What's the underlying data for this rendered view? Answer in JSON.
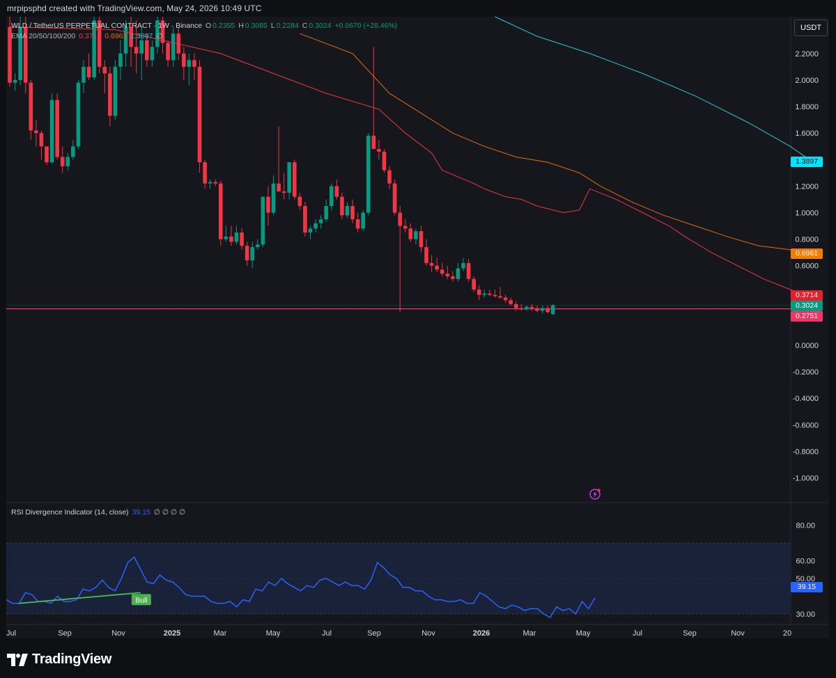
{
  "header": {
    "created_by": "mrpipsphd created with TradingView.com, May 24, 2026 10:49 UTC"
  },
  "legend": {
    "symbol": "WLD / TetherUS PERPETUAL CONTRACT · 1W · Binance",
    "o_label": "O",
    "o_value": "0.2355",
    "h_label": "H",
    "h_value": "0.3085",
    "l_label": "L",
    "l_value": "0.2284",
    "c_label": "C",
    "c_value": "0.3024",
    "change": "+0.0670 (+28.46%)",
    "ema_label": "EMA 20/50/100/200",
    "ema_values": [
      "0.3714",
      "0.6961",
      "1.3897",
      "∅"
    ],
    "rsi_label": "RSI Divergence Indicator (14, close)",
    "rsi_value": "39.15",
    "rsi_na": "∅ ∅ ∅ ∅"
  },
  "currency_button": "USDT",
  "brand": "TradingView",
  "price_tags": [
    {
      "id": "ema200",
      "text": "1.3897",
      "color": "#00e5ff",
      "text_color": "#000000"
    },
    {
      "id": "ema100",
      "text": "0.6961",
      "color": "#f57c00",
      "text_color": "#ffffff"
    },
    {
      "id": "ema50",
      "text": "0.3714",
      "color": "#e91e2c",
      "text_color": "#ffffff"
    },
    {
      "id": "close",
      "text": "0.3024",
      "color": "#089981",
      "text_color": "#ffffff"
    },
    {
      "id": "hline",
      "text": "0.2751",
      "color": "#f23663",
      "text_color": "#ffffff"
    },
    {
      "id": "rsi",
      "text": "39.15",
      "color": "#2962ff",
      "text_color": "#ffffff"
    }
  ],
  "divergence_label": "Bull",
  "colors": {
    "up": "#089981",
    "down": "#f23645",
    "ema20": "#f23645",
    "ema50": "#e96a0b",
    "ema100": "#26c6da",
    "hline": "#f23663",
    "rsi": "#2962ff",
    "bull": "#4caf50"
  },
  "chart_data": {
    "type": "candlestick",
    "title": "WLD / TetherUS PERPETUAL CONTRACT · 1W · Binance",
    "x_ticks": [
      "Jul",
      "Sep",
      "Nov",
      "2025",
      "Mar",
      "May",
      "Jul",
      "Sep",
      "Nov",
      "2026",
      "Mar",
      "May",
      "Jul",
      "Sep",
      "Nov",
      "20"
    ],
    "y_ticks": [
      "2.2000",
      "2.0000",
      "1.8000",
      "1.6000",
      "1.4000",
      "1.2000",
      "1.0000",
      "0.8000",
      "0.6000",
      "0.0000",
      "-0.2000",
      "-0.4000",
      "-0.6000",
      "-0.8000",
      "-1.0000"
    ],
    "ylim": [
      -1.1,
      2.35
    ],
    "horizontal_line": 0.2751,
    "candles": [
      [
        2.4,
        2.5,
        1.95,
        1.98
      ],
      [
        1.98,
        2.05,
        1.92,
        2.0
      ],
      [
        2.0,
        2.5,
        1.96,
        2.4
      ],
      [
        2.4,
        2.5,
        1.9,
        1.98
      ],
      [
        1.98,
        2.0,
        1.55,
        1.62
      ],
      [
        1.62,
        1.7,
        1.5,
        1.6
      ],
      [
        1.6,
        1.62,
        1.4,
        1.5
      ],
      [
        1.5,
        1.5,
        1.36,
        1.38
      ],
      [
        1.38,
        1.9,
        1.37,
        1.85
      ],
      [
        1.85,
        1.9,
        1.4,
        1.42
      ],
      [
        1.42,
        1.5,
        1.3,
        1.35
      ],
      [
        1.35,
        1.45,
        1.32,
        1.42
      ],
      [
        1.42,
        1.55,
        1.4,
        1.5
      ],
      [
        1.5,
        2.0,
        1.48,
        1.98
      ],
      [
        1.98,
        2.15,
        1.9,
        2.1
      ],
      [
        2.1,
        2.2,
        2.0,
        2.02
      ],
      [
        2.02,
        2.5,
        2.0,
        2.45
      ],
      [
        2.45,
        2.6,
        2.05,
        2.1
      ],
      [
        2.1,
        2.15,
        1.9,
        2.05
      ],
      [
        2.05,
        2.1,
        1.65,
        1.73
      ],
      [
        1.73,
        2.15,
        1.7,
        2.1
      ],
      [
        2.1,
        2.3,
        2.0,
        2.2
      ],
      [
        2.2,
        2.45,
        2.1,
        2.4
      ],
      [
        2.4,
        2.5,
        2.1,
        2.25
      ],
      [
        2.25,
        2.45,
        2.05,
        2.2
      ],
      [
        2.2,
        2.4,
        2.0,
        2.3
      ],
      [
        2.3,
        2.35,
        2.1,
        2.15
      ],
      [
        2.15,
        2.3,
        2.1,
        2.25
      ],
      [
        2.25,
        2.5,
        2.2,
        2.45
      ],
      [
        2.45,
        2.5,
        2.2,
        2.28
      ],
      [
        2.28,
        2.3,
        2.1,
        2.15
      ],
      [
        2.15,
        2.4,
        2.1,
        2.35
      ],
      [
        2.35,
        2.4,
        2.15,
        2.2
      ],
      [
        2.2,
        2.25,
        2.0,
        2.1
      ],
      [
        2.1,
        2.2,
        1.96,
        2.15
      ],
      [
        2.15,
        2.2,
        2.0,
        2.1
      ],
      [
        2.1,
        2.15,
        1.3,
        1.38
      ],
      [
        1.38,
        1.4,
        1.18,
        1.22
      ],
      [
        1.22,
        1.25,
        1.18,
        1.23
      ],
      [
        1.23,
        1.25,
        1.2,
        1.22
      ],
      [
        1.22,
        1.24,
        0.75,
        0.8
      ],
      [
        0.8,
        0.9,
        0.78,
        0.82
      ],
      [
        0.82,
        0.9,
        0.75,
        0.78
      ],
      [
        0.78,
        0.9,
        0.76,
        0.85
      ],
      [
        0.85,
        0.88,
        0.72,
        0.75
      ],
      [
        0.75,
        0.78,
        0.6,
        0.64
      ],
      [
        0.64,
        0.78,
        0.58,
        0.74
      ],
      [
        0.74,
        0.8,
        0.72,
        0.76
      ],
      [
        0.76,
        1.12,
        0.74,
        1.12
      ],
      [
        1.12,
        1.2,
        0.9,
        1.0
      ],
      [
        1.0,
        1.28,
        0.98,
        1.22
      ],
      [
        1.22,
        1.65,
        1.18,
        1.16
      ],
      [
        1.16,
        1.3,
        1.1,
        1.15
      ],
      [
        1.15,
        1.38,
        1.1,
        1.38
      ],
      [
        1.38,
        1.4,
        1.1,
        1.12
      ],
      [
        1.12,
        1.15,
        1.02,
        1.05
      ],
      [
        1.05,
        1.08,
        0.82,
        0.85
      ],
      [
        0.85,
        0.9,
        0.8,
        0.88
      ],
      [
        0.88,
        0.95,
        0.85,
        0.92
      ],
      [
        0.92,
        0.98,
        0.88,
        0.95
      ],
      [
        0.95,
        1.1,
        0.93,
        1.05
      ],
      [
        1.05,
        1.22,
        1.02,
        1.2
      ],
      [
        1.2,
        1.25,
        1.1,
        1.12
      ],
      [
        1.12,
        1.15,
        0.95,
        0.98
      ],
      [
        0.98,
        1.08,
        0.96,
        1.05
      ],
      [
        1.05,
        1.1,
        0.92,
        0.95
      ],
      [
        0.95,
        1.0,
        0.85,
        0.88
      ],
      [
        0.88,
        1.02,
        0.86,
        1.0
      ],
      [
        1.0,
        1.6,
        0.98,
        1.58
      ],
      [
        1.58,
        2.25,
        1.5,
        1.48
      ],
      [
        1.48,
        1.55,
        1.4,
        1.46
      ],
      [
        1.46,
        1.48,
        1.3,
        1.32
      ],
      [
        1.32,
        1.35,
        1.18,
        1.22
      ],
      [
        1.22,
        1.25,
        0.98,
        1.0
      ],
      [
        1.0,
        1.05,
        0.25,
        0.9
      ],
      [
        0.9,
        0.95,
        0.85,
        0.88
      ],
      [
        0.88,
        0.92,
        0.78,
        0.8
      ],
      [
        0.8,
        0.88,
        0.76,
        0.86
      ],
      [
        0.86,
        0.9,
        0.7,
        0.74
      ],
      [
        0.74,
        0.8,
        0.6,
        0.62
      ],
      [
        0.62,
        0.68,
        0.55,
        0.6
      ],
      [
        0.6,
        0.66,
        0.55,
        0.57
      ],
      [
        0.57,
        0.62,
        0.52,
        0.54
      ],
      [
        0.54,
        0.6,
        0.5,
        0.52
      ],
      [
        0.52,
        0.56,
        0.48,
        0.5
      ],
      [
        0.5,
        0.62,
        0.48,
        0.58
      ],
      [
        0.58,
        0.66,
        0.56,
        0.62
      ],
      [
        0.62,
        0.65,
        0.48,
        0.5
      ],
      [
        0.5,
        0.52,
        0.4,
        0.42
      ],
      [
        0.42,
        0.45,
        0.34,
        0.38
      ],
      [
        0.38,
        0.42,
        0.36,
        0.39
      ],
      [
        0.39,
        0.42,
        0.37,
        0.38
      ],
      [
        0.38,
        0.42,
        0.36,
        0.37
      ],
      [
        0.37,
        0.44,
        0.35,
        0.36
      ],
      [
        0.36,
        0.38,
        0.32,
        0.34
      ],
      [
        0.34,
        0.36,
        0.3,
        0.31
      ],
      [
        0.31,
        0.33,
        0.26,
        0.28
      ],
      [
        0.28,
        0.31,
        0.26,
        0.27
      ],
      [
        0.27,
        0.3,
        0.26,
        0.29
      ],
      [
        0.29,
        0.31,
        0.26,
        0.28
      ],
      [
        0.28,
        0.3,
        0.25,
        0.26
      ],
      [
        0.26,
        0.3,
        0.24,
        0.28
      ],
      [
        0.28,
        0.3,
        0.24,
        0.25
      ],
      [
        0.2355,
        0.3085,
        0.2284,
        0.3024
      ]
    ],
    "ema20": [
      [
        0,
        2.4
      ],
      [
        20,
        2.38
      ],
      [
        40,
        2.2
      ],
      [
        60,
        1.9
      ],
      [
        70,
        1.78
      ],
      [
        75,
        1.6
      ],
      [
        80,
        1.45
      ],
      [
        82,
        1.32
      ],
      [
        85,
        1.27
      ],
      [
        88,
        1.22
      ],
      [
        90,
        1.18
      ],
      [
        94,
        1.12
      ],
      [
        97,
        1.1
      ],
      [
        100,
        1.05
      ],
      [
        105,
        1.0
      ],
      [
        108,
        1.02
      ],
      [
        110,
        1.18
      ],
      [
        115,
        1.1
      ],
      [
        120,
        1.0
      ],
      [
        125,
        0.9
      ],
      [
        128,
        0.82
      ],
      [
        133,
        0.7
      ],
      [
        138,
        0.6
      ],
      [
        143,
        0.5
      ],
      [
        148,
        0.42
      ],
      [
        152,
        0.3714
      ]
    ],
    "ema50": [
      [
        55,
        2.35
      ],
      [
        65,
        2.2
      ],
      [
        72,
        1.9
      ],
      [
        78,
        1.75
      ],
      [
        84,
        1.6
      ],
      [
        90,
        1.5
      ],
      [
        96,
        1.42
      ],
      [
        102,
        1.38
      ],
      [
        108,
        1.3
      ],
      [
        112,
        1.2
      ],
      [
        118,
        1.08
      ],
      [
        124,
        0.98
      ],
      [
        130,
        0.9
      ],
      [
        136,
        0.82
      ],
      [
        142,
        0.75
      ],
      [
        148,
        0.72
      ],
      [
        152,
        0.6961
      ]
    ],
    "ema100": [
      [
        92,
        2.5
      ],
      [
        100,
        2.33
      ],
      [
        110,
        2.2
      ],
      [
        120,
        2.05
      ],
      [
        130,
        1.88
      ],
      [
        140,
        1.68
      ],
      [
        148,
        1.5
      ],
      [
        152,
        1.3897
      ]
    ],
    "rsi": {
      "ylim": [
        27,
        84
      ],
      "y_ticks": [
        "80.00",
        "60.00",
        "50.00",
        "30.00"
      ],
      "band": [
        30,
        70
      ],
      "mid": 50,
      "current": 39.15,
      "values": [
        38,
        36,
        36,
        42,
        41,
        37,
        37,
        36,
        40,
        37,
        37,
        38,
        44,
        43,
        45,
        49,
        45,
        43,
        50,
        59,
        62,
        55,
        48,
        47,
        52,
        49,
        48,
        45,
        41,
        40,
        40,
        40,
        37,
        36,
        36,
        37,
        34,
        38,
        37,
        44,
        43,
        48,
        46,
        50,
        47,
        45,
        43,
        46,
        45,
        49,
        50,
        48,
        46,
        48,
        46,
        46,
        44,
        49,
        59,
        56,
        52,
        50,
        45,
        45,
        43,
        43,
        40,
        38,
        38,
        37,
        37,
        38,
        36,
        36,
        42,
        40,
        37,
        34,
        33,
        35,
        34,
        32,
        33,
        33,
        30,
        28,
        34,
        32,
        33,
        30,
        37,
        33,
        39.15
      ],
      "divergence": {
        "label": "Bull",
        "from": [
          2,
          36
        ],
        "to": [
          21,
          42
        ]
      }
    }
  }
}
